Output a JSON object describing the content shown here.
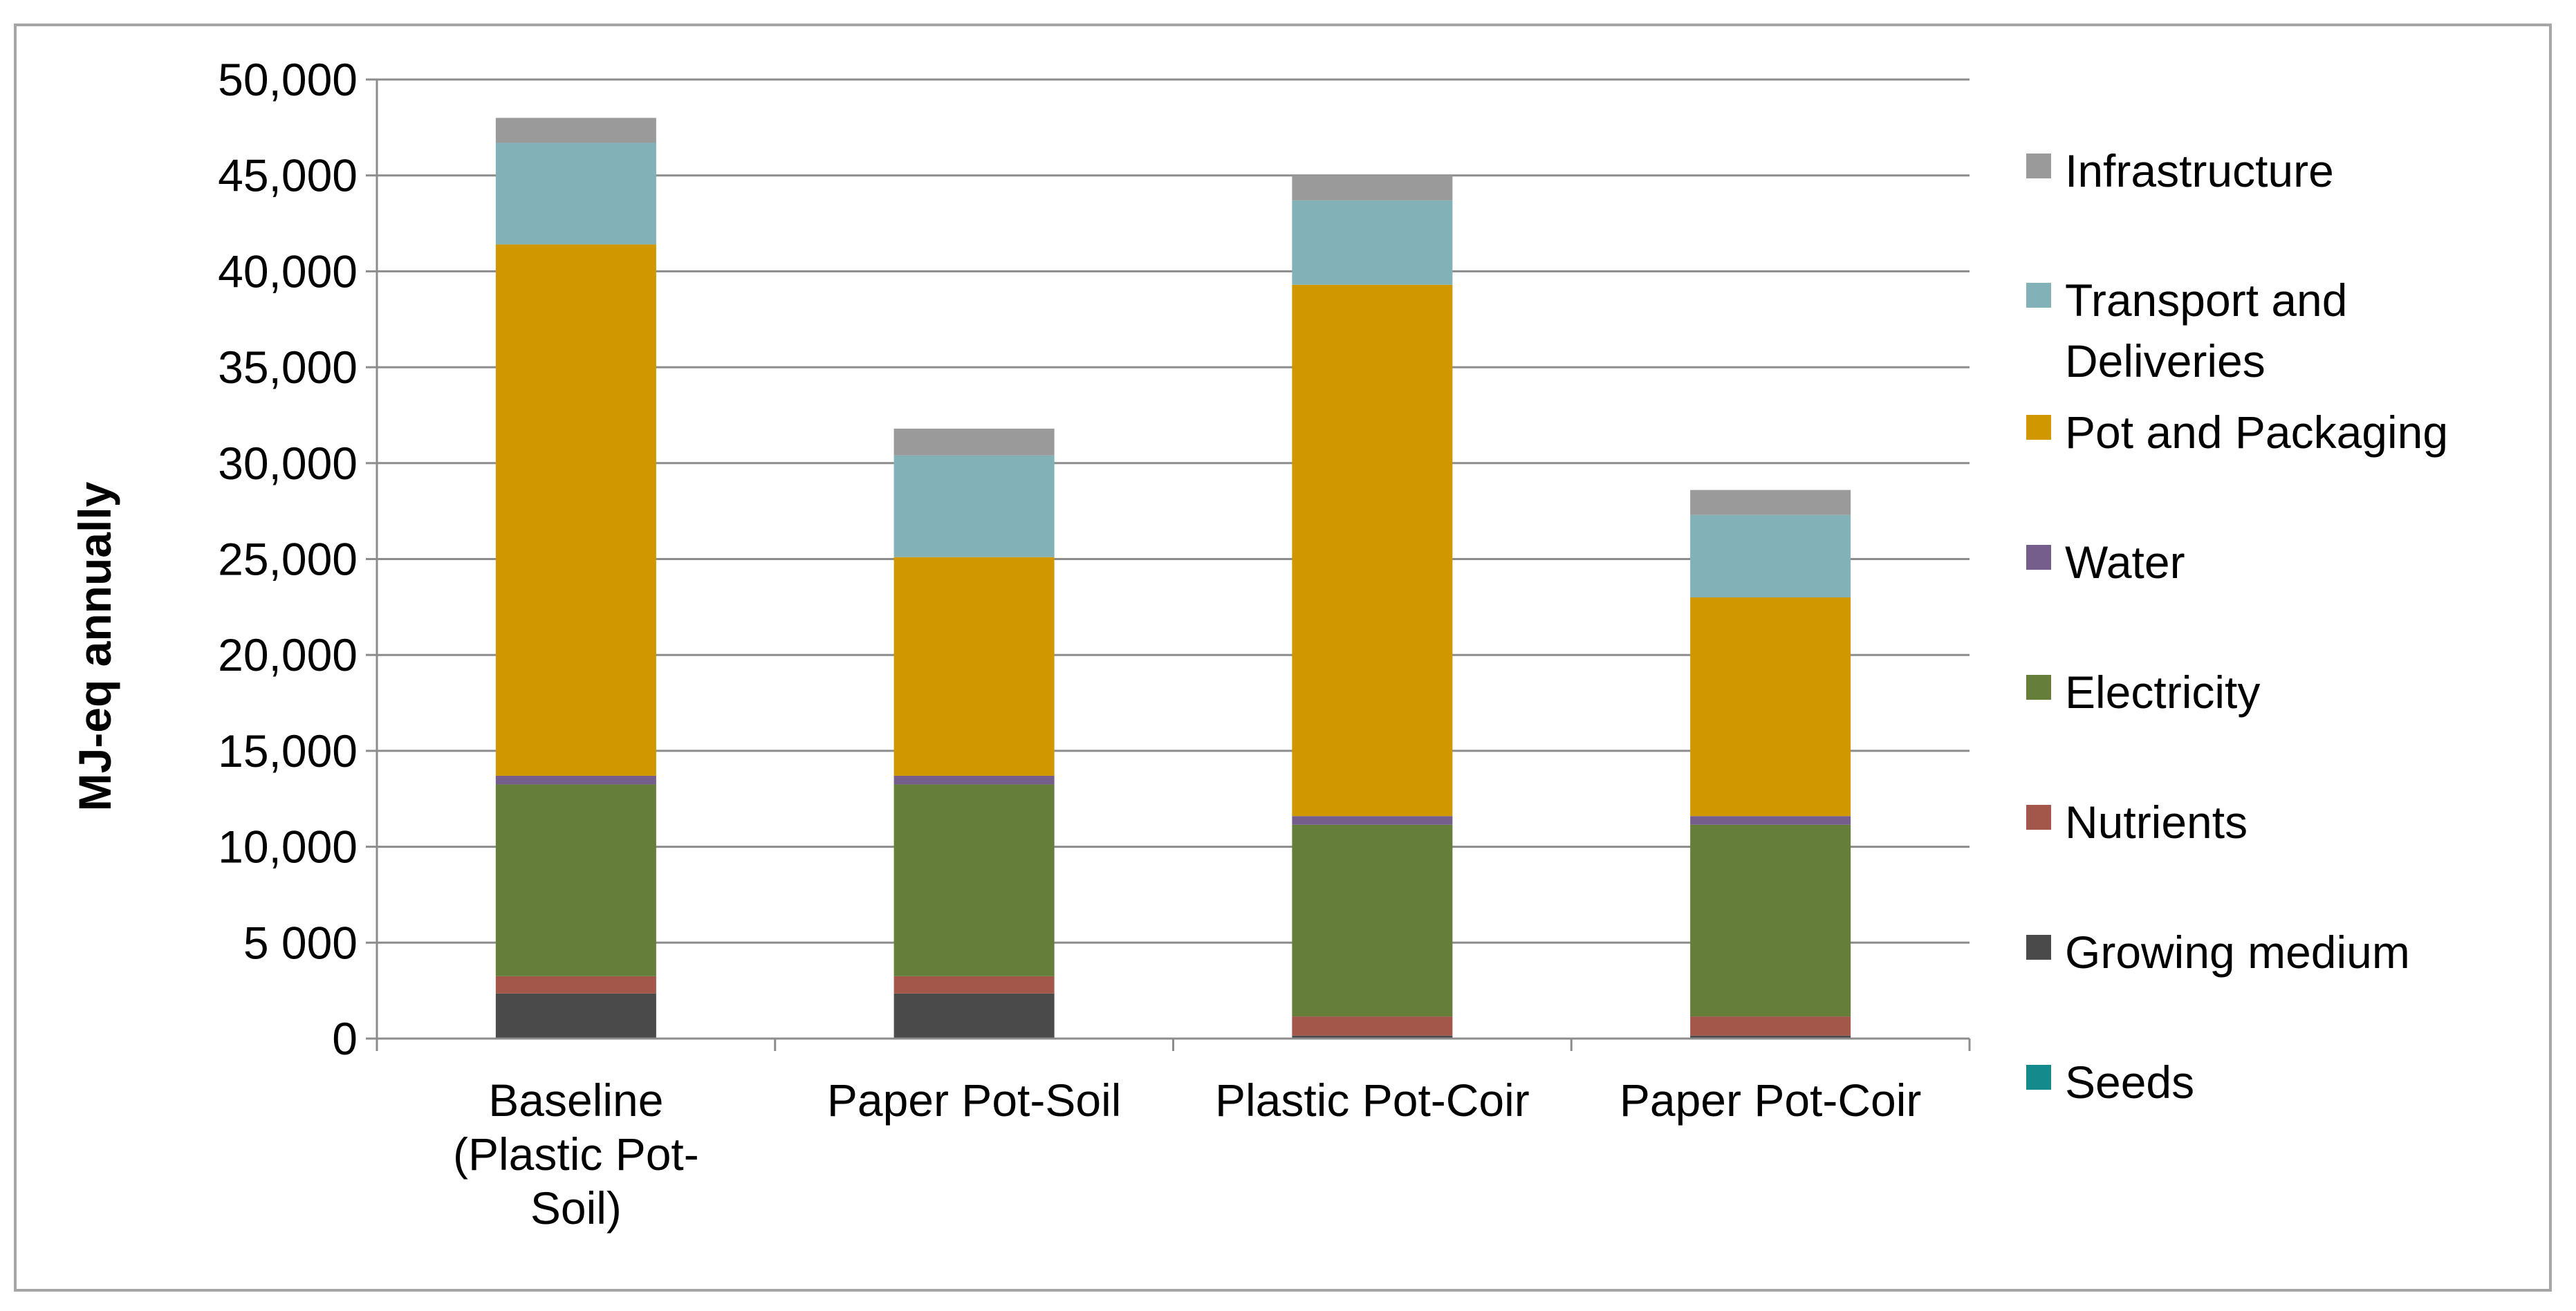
{
  "chart_data": {
    "type": "bar",
    "stacked": true,
    "ylabel": "MJ-eq annually",
    "ylim": [
      0,
      50000
    ],
    "yticks": [
      0,
      5000,
      10000,
      15000,
      20000,
      25000,
      30000,
      35000,
      40000,
      45000,
      50000
    ],
    "ytick_labels": [
      "0",
      "5 000",
      "10,000",
      "15,000",
      "20,000",
      "25,000",
      "30,000",
      "35,000",
      "40,000",
      "45,000",
      "50,000"
    ],
    "grid": true,
    "legend_position": "right",
    "categories": [
      [
        "Baseline",
        "(Plastic Pot-",
        "Soil)"
      ],
      [
        "Paper Pot-Soil"
      ],
      [
        "Plastic Pot-Coir"
      ],
      [
        "Paper Pot-Coir"
      ]
    ],
    "series": [
      {
        "name": "Seeds",
        "color": "#148a8c",
        "values": [
          50,
          50,
          50,
          50
        ]
      },
      {
        "name": "Growing medium",
        "color": "#4a4a4a",
        "values": [
          2300,
          2300,
          100,
          100
        ]
      },
      {
        "name": "Nutrients",
        "color": "#a2574a",
        "values": [
          900,
          900,
          1000,
          1000
        ]
      },
      {
        "name": "Electricity",
        "color": "#657e3a",
        "values": [
          10000,
          10000,
          10000,
          10000
        ]
      },
      {
        "name": "Water",
        "color": "#765e8c",
        "values": [
          450,
          450,
          450,
          450
        ]
      },
      {
        "name": "Pot and Packaging",
        "color": "#d19700",
        "values": [
          27700,
          11400,
          27700,
          11400
        ]
      },
      {
        "name": "Transport and Deliveries",
        "color": "#82b1b8",
        "values": [
          5300,
          5300,
          4400,
          4300
        ]
      },
      {
        "name": "Infrastructure",
        "color": "#9a9a9a",
        "values": [
          1300,
          1400,
          1300,
          1300
        ]
      }
    ],
    "legend": [
      {
        "series_index": 7,
        "lines": [
          "Infrastructure"
        ]
      },
      {
        "series_index": 6,
        "lines": [
          "Transport and",
          "Deliveries"
        ]
      },
      {
        "series_index": 5,
        "lines": [
          "Pot and Packaging"
        ]
      },
      {
        "series_index": 4,
        "lines": [
          "Water"
        ]
      },
      {
        "series_index": 3,
        "lines": [
          "Electricity"
        ]
      },
      {
        "series_index": 2,
        "lines": [
          "Nutrients"
        ]
      },
      {
        "series_index": 1,
        "lines": [
          "Growing medium"
        ]
      },
      {
        "series_index": 0,
        "lines": [
          "Seeds"
        ]
      }
    ]
  }
}
